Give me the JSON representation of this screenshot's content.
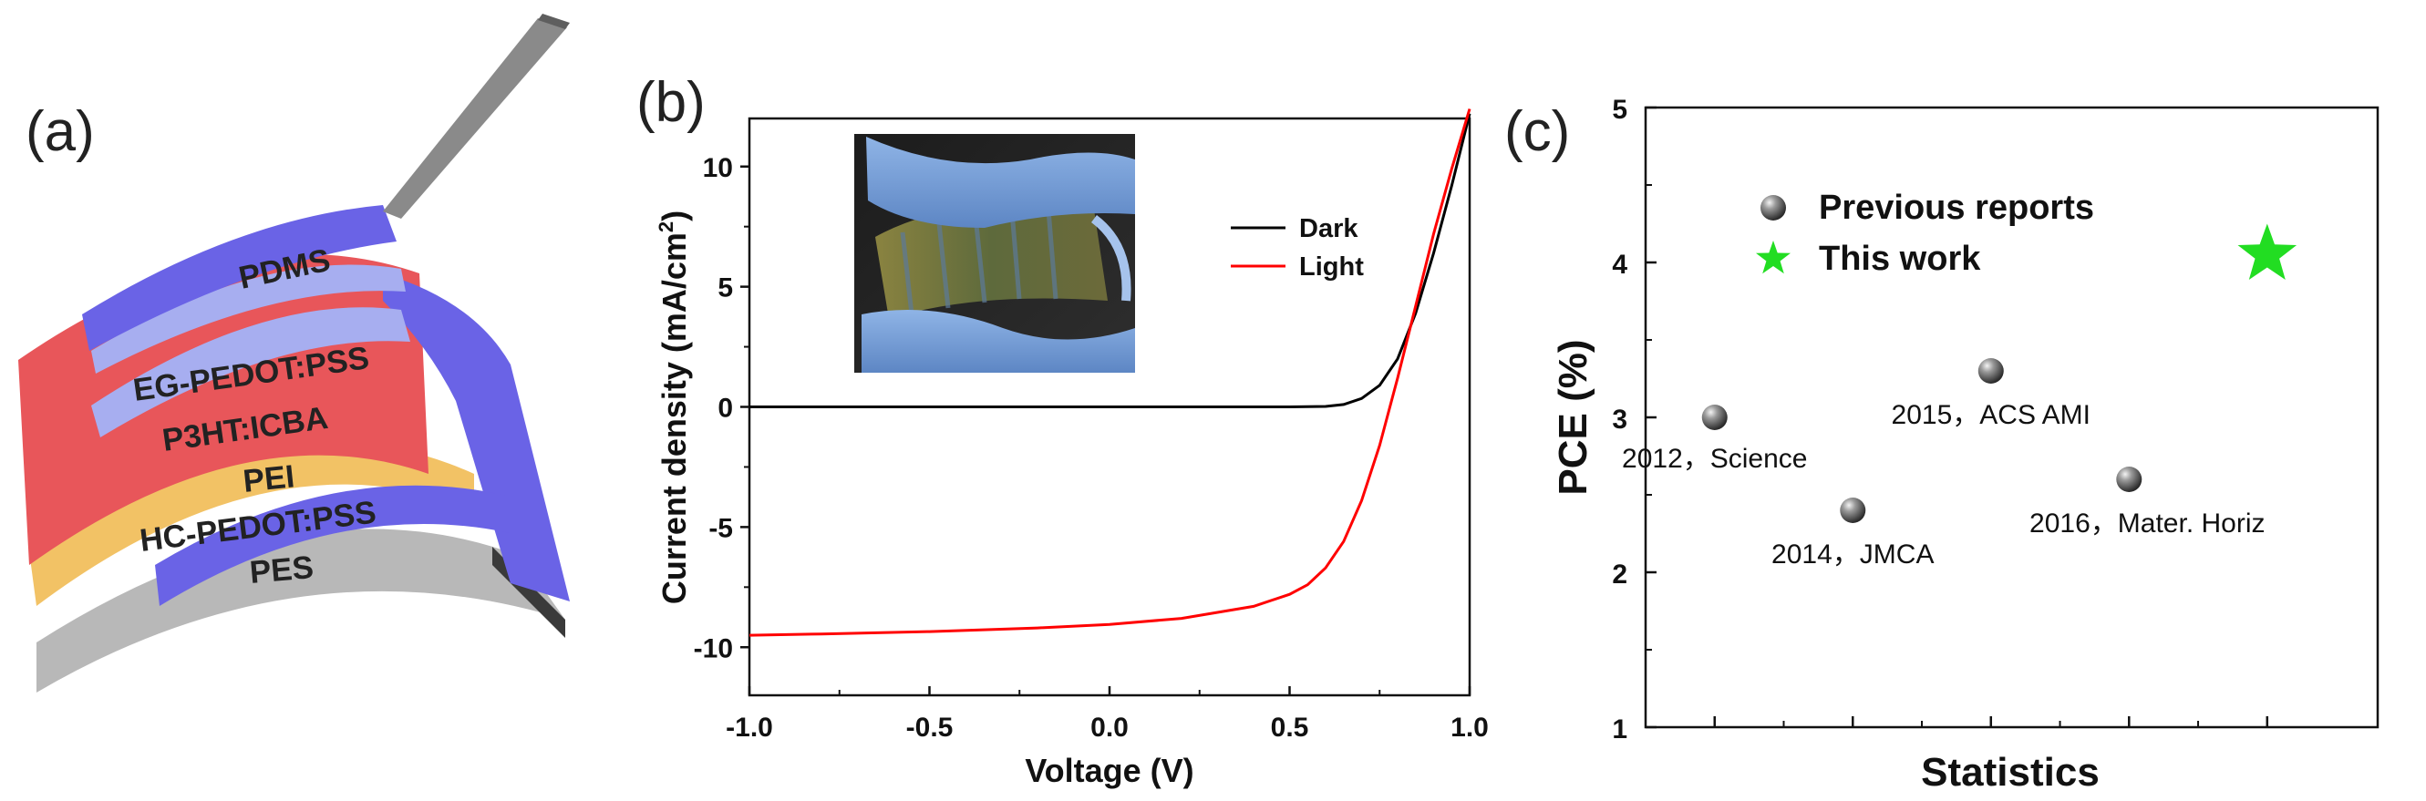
{
  "panel_a": {
    "label": "(a)",
    "layers": [
      "PDMS",
      "EG-PEDOT:PSS",
      "P3HT:ICBA",
      "PEI",
      "HC-PEDOT:PSS",
      "PES"
    ],
    "colors": {
      "red": "#e8565a",
      "blue": "#6a63e6",
      "light_blue": "#a7aef0",
      "orange": "#f2c265",
      "gray": "#b5b5b5",
      "dark_gray": "#555555"
    }
  },
  "panel_b": {
    "label": "(b)",
    "inset_alt": "photo of flexible device held by gloved fingers"
  },
  "panel_c": {
    "label": "(c)"
  },
  "chart_data": [
    {
      "type": "line",
      "title": "",
      "xlabel": "Voltage (V)",
      "ylabel": "Current density (mA/cm",
      "ylabel_sup": "2",
      "ylabel_end": ")",
      "xlim": [
        -1.0,
        1.0
      ],
      "ylim": [
        -12,
        12
      ],
      "xticks": [
        "-1.0",
        "-0.5",
        "0.0",
        "0.5",
        "1.0"
      ],
      "yticks": [
        "-10",
        "-5",
        "0",
        "5",
        "10"
      ],
      "legend": "top-right",
      "series": [
        {
          "name": "Dark",
          "color": "#000000",
          "x": [
            -1.0,
            -0.5,
            0.0,
            0.5,
            0.6,
            0.65,
            0.7,
            0.75,
            0.8,
            0.85,
            0.9,
            0.95,
            1.0
          ],
          "y": [
            0,
            0,
            0,
            0,
            0.02,
            0.1,
            0.35,
            0.9,
            2.0,
            3.9,
            6.4,
            9.2,
            12.2
          ]
        },
        {
          "name": "Light",
          "color": "#ff0000",
          "x": [
            -1.0,
            -0.8,
            -0.5,
            -0.2,
            0.0,
            0.2,
            0.4,
            0.5,
            0.55,
            0.6,
            0.65,
            0.7,
            0.75,
            0.8,
            0.85,
            0.9,
            0.95,
            1.0
          ],
          "y": [
            -9.5,
            -9.45,
            -9.35,
            -9.2,
            -9.05,
            -8.8,
            -8.3,
            -7.8,
            -7.4,
            -6.7,
            -5.6,
            -3.9,
            -1.6,
            1.2,
            4.2,
            7.2,
            9.9,
            12.4
          ]
        }
      ]
    },
    {
      "type": "scatter",
      "title": "",
      "xlabel": "Statistics",
      "ylabel": "PCE (%)",
      "xlim": [
        0.5,
        5.8
      ],
      "ylim": [
        1,
        5
      ],
      "yticks": [
        "1",
        "2",
        "3",
        "4",
        "5"
      ],
      "legend": "top-left",
      "series": [
        {
          "name": "Previous reports",
          "marker": "sphere",
          "color": "#777777",
          "points": [
            {
              "x": 1,
              "y": 3.0,
              "label": "2012，Science"
            },
            {
              "x": 2,
              "y": 2.4,
              "label": "2014，JMCA"
            },
            {
              "x": 3,
              "y": 3.3,
              "label": "2015，ACS AMI"
            },
            {
              "x": 4,
              "y": 2.6,
              "label": "2016，Mater. Horiz"
            }
          ]
        },
        {
          "name": "This work",
          "marker": "star",
          "color": "#22dd22",
          "points": [
            {
              "x": 5,
              "y": 4.05,
              "label": ""
            }
          ]
        }
      ]
    }
  ]
}
